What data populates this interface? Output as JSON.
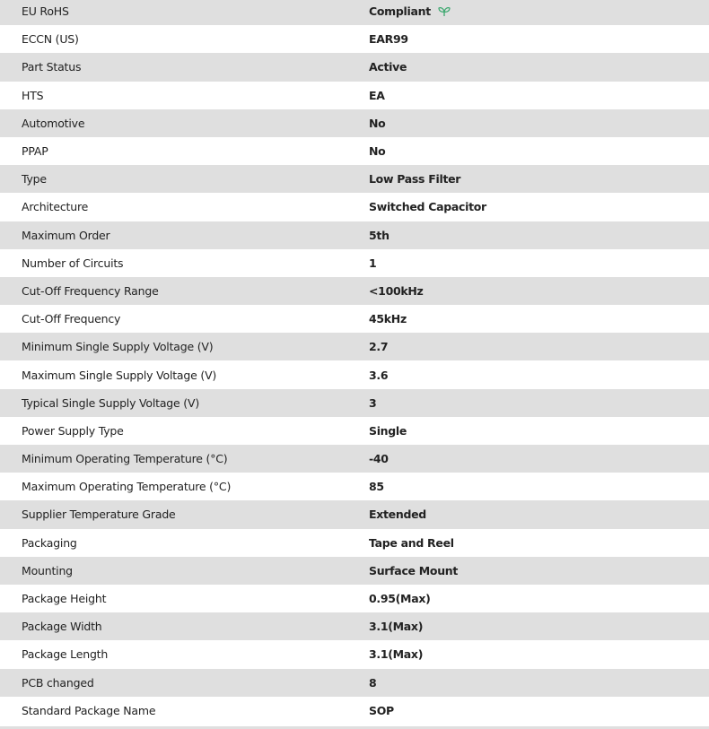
{
  "specs": [
    {
      "label": "EU RoHS",
      "value": "Compliant",
      "icon": "leaf-icon"
    },
    {
      "label": "ECCN (US)",
      "value": "EAR99"
    },
    {
      "label": "Part Status",
      "value": "Active"
    },
    {
      "label": "HTS",
      "value": "EA"
    },
    {
      "label": "Automotive",
      "value": "No"
    },
    {
      "label": "PPAP",
      "value": "No"
    },
    {
      "label": "Type",
      "value": "Low Pass Filter"
    },
    {
      "label": "Architecture",
      "value": "Switched Capacitor"
    },
    {
      "label": "Maximum Order",
      "value": "5th"
    },
    {
      "label": "Number of Circuits",
      "value": "1"
    },
    {
      "label": "Cut-Off Frequency Range",
      "value": "<100kHz"
    },
    {
      "label": "Cut-Off Frequency",
      "value": "45kHz"
    },
    {
      "label": "Minimum Single Supply Voltage (V)",
      "value": "2.7"
    },
    {
      "label": "Maximum Single Supply Voltage (V)",
      "value": "3.6"
    },
    {
      "label": "Typical Single Supply Voltage (V)",
      "value": "3"
    },
    {
      "label": "Power Supply Type",
      "value": "Single"
    },
    {
      "label": "Minimum Operating Temperature (°C)",
      "value": "-40"
    },
    {
      "label": "Maximum Operating Temperature (°C)",
      "value": "85"
    },
    {
      "label": "Supplier Temperature Grade",
      "value": "Extended"
    },
    {
      "label": "Packaging",
      "value": "Tape and Reel"
    },
    {
      "label": "Mounting",
      "value": "Surface Mount"
    },
    {
      "label": "Package Height",
      "value": "0.95(Max)"
    },
    {
      "label": "Package Width",
      "value": "3.1(Max)"
    },
    {
      "label": "Package Length",
      "value": "3.1(Max)"
    },
    {
      "label": "PCB changed",
      "value": "8"
    },
    {
      "label": "Standard Package Name",
      "value": "SOP"
    }
  ],
  "colors": {
    "leaf": "#3aa76d",
    "stripe": "#dfdfdf"
  }
}
